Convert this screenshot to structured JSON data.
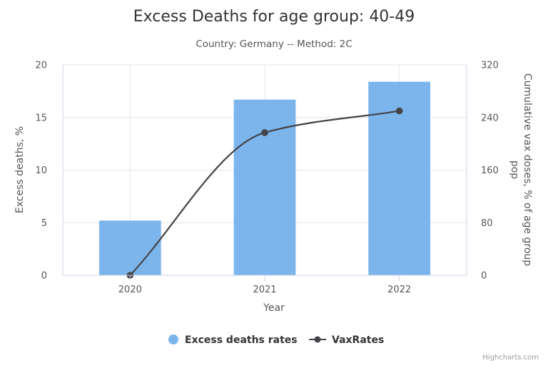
{
  "chart_data": {
    "type": "bar",
    "title": "Excess Deaths for age group: 40-49",
    "subtitle": "Country: Germany -- Method: 2C",
    "categories": [
      "2020",
      "2021",
      "2022"
    ],
    "xlabel": "Year",
    "ylabel": "Excess deaths, %",
    "ylabel_right_line1": "Cumulative vax doses, % of age group",
    "ylabel_right_line2": "pop",
    "ylim": [
      0,
      20
    ],
    "y_ticks": [
      "0",
      "5",
      "10",
      "15",
      "20"
    ],
    "ylim_right": [
      0,
      320
    ],
    "y_ticks_right": [
      "0",
      "80",
      "160",
      "240",
      "320"
    ],
    "grid": true,
    "legend_position": "bottom-center",
    "series": [
      {
        "name": "Excess deaths rates",
        "type": "bar",
        "axis": "left",
        "color": "#7cb5ec",
        "values": [
          5.2,
          16.7,
          18.4
        ]
      },
      {
        "name": "VaxRates",
        "type": "line",
        "axis": "right",
        "color": "#434348",
        "values": [
          0,
          217,
          250
        ]
      }
    ]
  },
  "credits": "Highcharts.com"
}
